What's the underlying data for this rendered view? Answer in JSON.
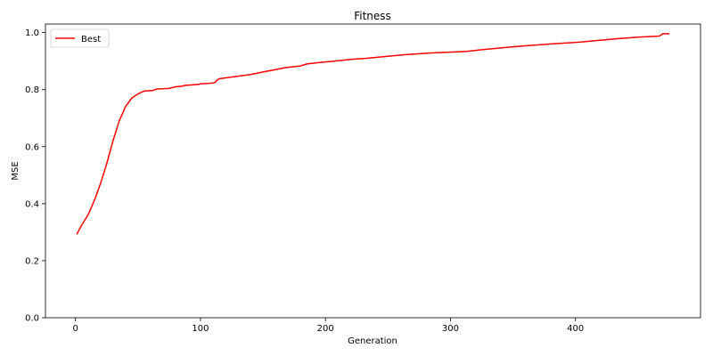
{
  "chart_data": {
    "type": "line",
    "title": "Fitness",
    "xlabel": "Generation",
    "ylabel": "MSE",
    "xlim": [
      -24,
      500
    ],
    "ylim": [
      0.0,
      1.03
    ],
    "xticks": [
      0,
      100,
      200,
      300,
      400
    ],
    "yticks": [
      0.0,
      0.2,
      0.4,
      0.6,
      0.8,
      1.0
    ],
    "xtick_labels": [
      "0",
      "100",
      "200",
      "300",
      "400"
    ],
    "ytick_labels": [
      "0.0",
      "0.2",
      "0.4",
      "0.6",
      "0.8",
      "1.0"
    ],
    "grid": false,
    "legend_position": "top-left",
    "series": [
      {
        "name": "Best",
        "color": "#ff0000",
        "points": [
          [
            1,
            0.292
          ],
          [
            5,
            0.325
          ],
          [
            10,
            0.36
          ],
          [
            15,
            0.41
          ],
          [
            20,
            0.47
          ],
          [
            25,
            0.54
          ],
          [
            30,
            0.62
          ],
          [
            35,
            0.69
          ],
          [
            40,
            0.74
          ],
          [
            45,
            0.77
          ],
          [
            50,
            0.785
          ],
          [
            55,
            0.795
          ],
          [
            62,
            0.797
          ],
          [
            65,
            0.802
          ],
          [
            75,
            0.804
          ],
          [
            80,
            0.81
          ],
          [
            85,
            0.812
          ],
          [
            88,
            0.815
          ],
          [
            98,
            0.818
          ],
          [
            100,
            0.82
          ],
          [
            110,
            0.823
          ],
          [
            112,
            0.826
          ],
          [
            113,
            0.832
          ],
          [
            115,
            0.838
          ],
          [
            120,
            0.841
          ],
          [
            130,
            0.847
          ],
          [
            140,
            0.853
          ],
          [
            150,
            0.862
          ],
          [
            160,
            0.87
          ],
          [
            168,
            0.877
          ],
          [
            180,
            0.883
          ],
          [
            185,
            0.89
          ],
          [
            195,
            0.895
          ],
          [
            200,
            0.897
          ],
          [
            212,
            0.902
          ],
          [
            220,
            0.906
          ],
          [
            233,
            0.91
          ],
          [
            245,
            0.915
          ],
          [
            262,
            0.922
          ],
          [
            283,
            0.928
          ],
          [
            313,
            0.934
          ],
          [
            325,
            0.94
          ],
          [
            340,
            0.946
          ],
          [
            355,
            0.952
          ],
          [
            380,
            0.96
          ],
          [
            405,
            0.967
          ],
          [
            432,
            0.978
          ],
          [
            450,
            0.984
          ],
          [
            467,
            0.988
          ],
          [
            470,
            0.996
          ],
          [
            475,
            0.996
          ]
        ]
      }
    ]
  }
}
